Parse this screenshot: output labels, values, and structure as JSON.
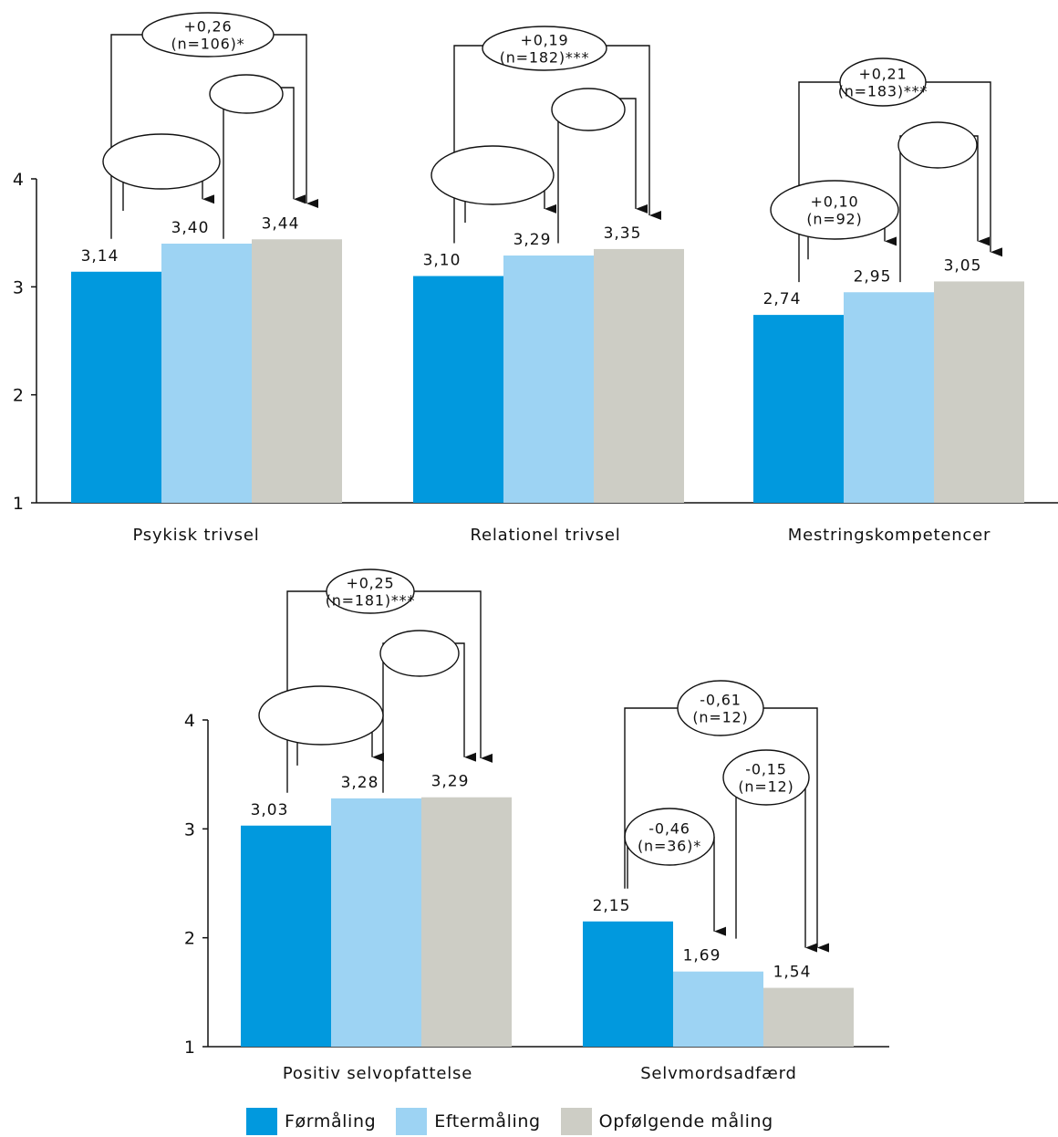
{
  "colors": {
    "series": [
      "#0199de",
      "#9dd3f3",
      "#cdcdc5"
    ],
    "axis": "#111111"
  },
  "legend": {
    "items": [
      "Førmåling",
      "Eftermåling",
      "Opfølgende måling"
    ]
  },
  "chart_data": [
    {
      "type": "bar",
      "ylim": [
        1,
        4
      ],
      "yticks": [
        "1",
        "2",
        "3",
        "4"
      ],
      "categories": [
        "Psykisk trivsel",
        "Relationel trivsel",
        "Mestringskompetencer"
      ],
      "series": [
        {
          "name": "Førmåling",
          "values": [
            3.14,
            3.1,
            2.74
          ],
          "labels": [
            "3,14",
            "3,10",
            "2,74"
          ]
        },
        {
          "name": "Eftermåling",
          "values": [
            3.4,
            3.29,
            2.95
          ],
          "labels": [
            "3,40",
            "3,29",
            "2,95"
          ]
        },
        {
          "name": "Opfølgende måling",
          "values": [
            3.44,
            3.35,
            3.05
          ],
          "labels": [
            "3,44",
            "3,35",
            "3,05"
          ]
        }
      ],
      "comparisons": [
        {
          "category": 0,
          "from": 0,
          "to": 1,
          "lines": [
            "+0,26",
            "(n=106)*"
          ]
        },
        {
          "category": 0,
          "from": 0,
          "to": 2,
          "lines": []
        },
        {
          "category": 0,
          "from": 1,
          "to": 2,
          "lines": []
        },
        {
          "category": 1,
          "from": 0,
          "to": 1,
          "lines": [
            "+0,19",
            "(n=182)***"
          ]
        },
        {
          "category": 1,
          "from": 0,
          "to": 2,
          "lines": []
        },
        {
          "category": 1,
          "from": 1,
          "to": 2,
          "lines": []
        },
        {
          "category": 2,
          "from": 0,
          "to": 1,
          "lines": [
            "+0,21",
            "(n=183)***"
          ]
        },
        {
          "category": 2,
          "from": 0,
          "to": 2,
          "lines": []
        },
        {
          "category": 2,
          "from": 1,
          "to": 2,
          "lines": [
            "+0,10",
            "(n=92)"
          ]
        }
      ]
    },
    {
      "type": "bar",
      "ylim": [
        1,
        4
      ],
      "yticks": [
        "1",
        "2",
        "3",
        "4"
      ],
      "categories": [
        "Positiv selvopfattelse",
        "Selvmordsadfærd"
      ],
      "series": [
        {
          "name": "Førmåling",
          "values": [
            3.03,
            2.15
          ],
          "labels": [
            "3,03",
            "2,15"
          ]
        },
        {
          "name": "Eftermåling",
          "values": [
            3.28,
            1.69
          ],
          "labels": [
            "3,28",
            "1,69"
          ]
        },
        {
          "name": "Opfølgende måling",
          "values": [
            3.29,
            1.54
          ],
          "labels": [
            "3,29",
            "1,54"
          ]
        }
      ],
      "comparisons": [
        {
          "category": 0,
          "from": 0,
          "to": 1,
          "lines": [
            "+0,25",
            "(n=181)***"
          ]
        },
        {
          "category": 0,
          "from": 0,
          "to": 2,
          "lines": []
        },
        {
          "category": 0,
          "from": 1,
          "to": 2,
          "lines": []
        },
        {
          "category": 1,
          "from": 0,
          "to": 1,
          "lines": [
            "-0,46",
            "(n=36)*"
          ]
        },
        {
          "category": 1,
          "from": 0,
          "to": 2,
          "lines": [
            "-0,61",
            "(n=12)"
          ]
        },
        {
          "category": 1,
          "from": 1,
          "to": 2,
          "lines": [
            "-0,15",
            "(n=12)"
          ]
        }
      ]
    }
  ]
}
